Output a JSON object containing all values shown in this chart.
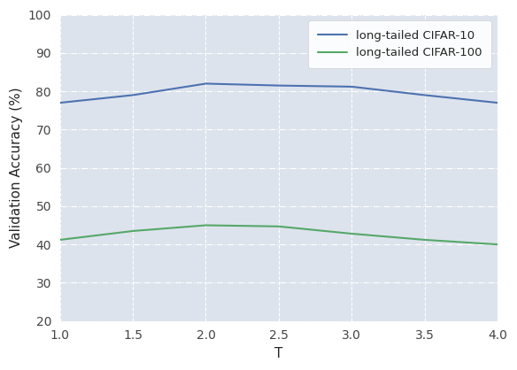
{
  "x": [
    1.0,
    1.5,
    2.0,
    2.5,
    3.0,
    3.5,
    4.0
  ],
  "cifar10": [
    77.0,
    79.0,
    82.0,
    81.5,
    81.2,
    79.0,
    77.0
  ],
  "cifar100": [
    41.2,
    43.5,
    45.0,
    44.7,
    42.8,
    41.2,
    40.0
  ],
  "cifar10_color": "#4c72b0",
  "cifar100_color": "#55a868",
  "bg_color": "#dde3ed",
  "fig_bg_color": "#ffffff",
  "xlabel": "T",
  "ylabel": "Validation Accuracy (%)",
  "ylim": [
    20,
    100
  ],
  "xlim": [
    1.0,
    4.0
  ],
  "yticks": [
    20,
    30,
    40,
    50,
    60,
    70,
    80,
    90,
    100
  ],
  "xticks": [
    1.0,
    1.5,
    2.0,
    2.5,
    3.0,
    3.5,
    4.0
  ],
  "legend_labels": [
    "long-tailed CIFAR-10",
    "long-tailed CIFAR-100"
  ],
  "line_width": 1.5,
  "grid_color": "#ffffff",
  "tick_fontsize": 10,
  "label_fontsize": 11
}
